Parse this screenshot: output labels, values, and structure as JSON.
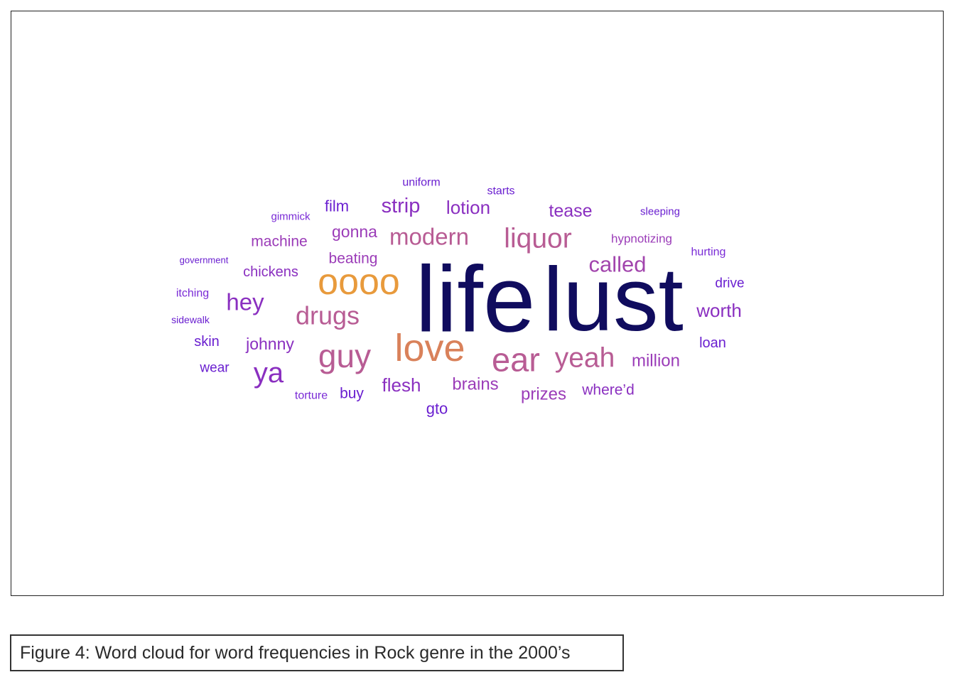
{
  "caption": "Figure 4: Word cloud for word frequencies in Rock genre in the 2000’s",
  "chart_data": {
    "type": "wordcloud",
    "title": "",
    "palette": [
      "#0d0a5c",
      "#e89a3c",
      "#d9815a",
      "#b85c94",
      "#9b3cb8",
      "#7a2bd6",
      "#5b12d8"
    ],
    "words": [
      {
        "text": "life",
        "weight": 100,
        "color": "#100c5e"
      },
      {
        "text": "lust",
        "weight": 95,
        "color": "#100c5e"
      },
      {
        "text": "oooo",
        "weight": 42,
        "color": "#e89a3c"
      },
      {
        "text": "love",
        "weight": 48,
        "color": "#d9815a"
      },
      {
        "text": "ear",
        "weight": 40,
        "color": "#b85c94"
      },
      {
        "text": "guy",
        "weight": 40,
        "color": "#b85c94"
      },
      {
        "text": "yeah",
        "weight": 34,
        "color": "#b85c94"
      },
      {
        "text": "liquor",
        "weight": 34,
        "color": "#b85c94"
      },
      {
        "text": "drugs",
        "weight": 30,
        "color": "#b85c94"
      },
      {
        "text": "modern",
        "weight": 28,
        "color": "#b85c94"
      },
      {
        "text": "ya",
        "weight": 34,
        "color": "#8a2fc0"
      },
      {
        "text": "called",
        "weight": 26,
        "color": "#a245ad"
      },
      {
        "text": "hey",
        "weight": 28,
        "color": "#8a2fc0"
      },
      {
        "text": "strip",
        "weight": 26,
        "color": "#8a2fc0"
      },
      {
        "text": "worth",
        "weight": 22,
        "color": "#8a2fc0"
      },
      {
        "text": "lotion",
        "weight": 22,
        "color": "#8a2fc0"
      },
      {
        "text": "tease",
        "weight": 22,
        "color": "#8a2fc0"
      },
      {
        "text": "flesh",
        "weight": 22,
        "color": "#8a2fc0"
      },
      {
        "text": "brains",
        "weight": 20,
        "color": "#9b3cb8"
      },
      {
        "text": "prizes",
        "weight": 20,
        "color": "#9b3cb8"
      },
      {
        "text": "gonna",
        "weight": 20,
        "color": "#9b3cb8"
      },
      {
        "text": "million",
        "weight": 20,
        "color": "#9b3cb8"
      },
      {
        "text": "johnny",
        "weight": 20,
        "color": "#8a2fc0"
      },
      {
        "text": "beating",
        "weight": 18,
        "color": "#9b3cb8"
      },
      {
        "text": "machine",
        "weight": 18,
        "color": "#9b3cb8"
      },
      {
        "text": "chickens",
        "weight": 17,
        "color": "#8a2fc0"
      },
      {
        "text": "where’d",
        "weight": 18,
        "color": "#8a2fc0"
      },
      {
        "text": "film",
        "weight": 18,
        "color": "#6a1fd0"
      },
      {
        "text": "gto",
        "weight": 18,
        "color": "#6a1fd0"
      },
      {
        "text": "buy",
        "weight": 18,
        "color": "#6a1fd0"
      },
      {
        "text": "skin",
        "weight": 17,
        "color": "#6a1fd0"
      },
      {
        "text": "loan",
        "weight": 17,
        "color": "#6a1fd0"
      },
      {
        "text": "drive",
        "weight": 16,
        "color": "#6a1fd0"
      },
      {
        "text": "wear",
        "weight": 16,
        "color": "#6a1fd0"
      },
      {
        "text": "hypnotizing",
        "weight": 15,
        "color": "#9b3cb8"
      },
      {
        "text": "hurting",
        "weight": 14,
        "color": "#7a2bd6"
      },
      {
        "text": "itching",
        "weight": 14,
        "color": "#7a2bd6"
      },
      {
        "text": "torture",
        "weight": 14,
        "color": "#7a2bd6"
      },
      {
        "text": "starts",
        "weight": 14,
        "color": "#6a1fd0"
      },
      {
        "text": "uniform",
        "weight": 14,
        "color": "#6a1fd0"
      },
      {
        "text": "gimmick",
        "weight": 13,
        "color": "#7a2bd6"
      },
      {
        "text": "sleeping",
        "weight": 13,
        "color": "#6a1fd0"
      },
      {
        "text": "sidewalk",
        "weight": 12,
        "color": "#6a1fd0"
      },
      {
        "text": "government",
        "weight": 11,
        "color": "#6a1fd0"
      }
    ]
  }
}
